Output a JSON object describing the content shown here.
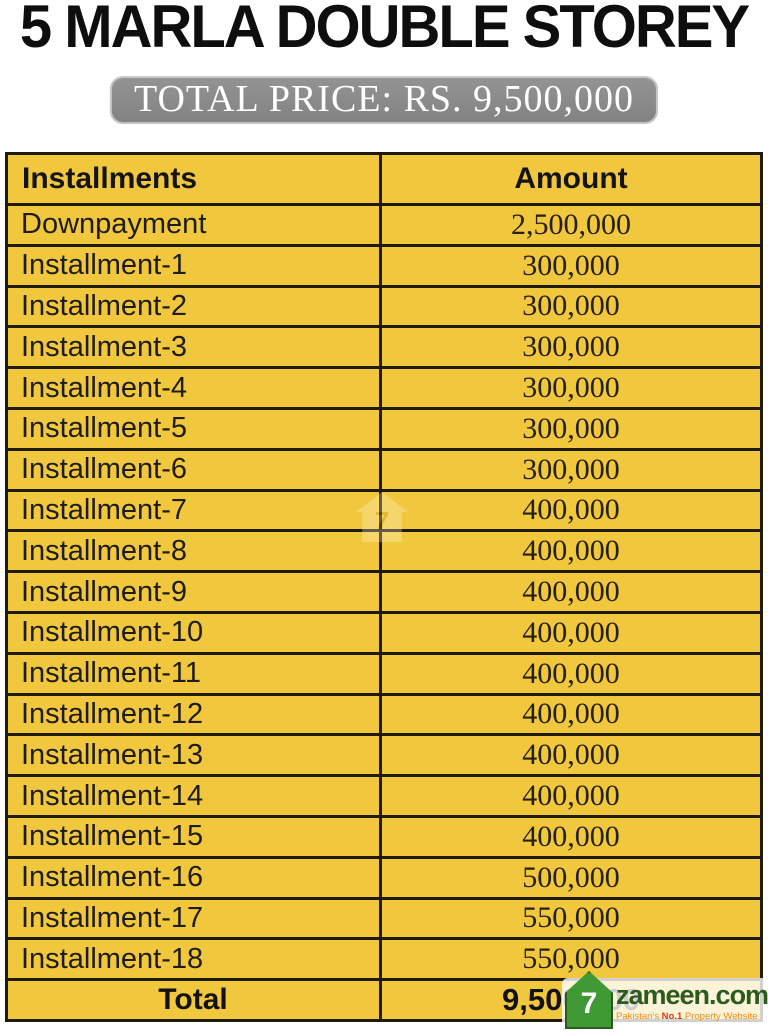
{
  "page": {
    "title": "5 MARLA DOUBLE STOREY",
    "price_banner": "TOTAL PRICE: RS. 9,500,000"
  },
  "table": {
    "headers": [
      "Installments",
      "Amount"
    ],
    "rows": [
      {
        "label": "Downpayment",
        "amount": "2,500,000"
      },
      {
        "label": "Installment-1",
        "amount": "300,000"
      },
      {
        "label": "Installment-2",
        "amount": "300,000"
      },
      {
        "label": "Installment-3",
        "amount": "300,000"
      },
      {
        "label": "Installment-4",
        "amount": "300,000"
      },
      {
        "label": "Installment-5",
        "amount": "300,000"
      },
      {
        "label": "Installment-6",
        "amount": "300,000"
      },
      {
        "label": "Installment-7",
        "amount": "400,000"
      },
      {
        "label": "Installment-8",
        "amount": "400,000"
      },
      {
        "label": "Installment-9",
        "amount": "400,000"
      },
      {
        "label": "Installment-10",
        "amount": "400,000"
      },
      {
        "label": "Installment-11",
        "amount": "400,000"
      },
      {
        "label": "Installment-12",
        "amount": "400,000"
      },
      {
        "label": "Installment-13",
        "amount": "400,000"
      },
      {
        "label": "Installment-14",
        "amount": "400,000"
      },
      {
        "label": "Installment-15",
        "amount": "400,000"
      },
      {
        "label": "Installment-16",
        "amount": "500,000"
      },
      {
        "label": "Installment-17",
        "amount": "550,000"
      },
      {
        "label": "Installment-18",
        "amount": "550,000"
      }
    ],
    "total": {
      "label": "Total",
      "amount": "9,500,000"
    }
  },
  "watermark": {
    "icon": "house-watermark",
    "glyph": "7"
  },
  "logo": {
    "brand": "zameen.com",
    "icon_glyph": "7",
    "tagline": {
      "p1": "Pakistan's",
      "p2": "No.1",
      "p3": "Property Website"
    }
  },
  "colors": {
    "table_yellow": "#f1c73d",
    "table_border": "#201a08",
    "banner_gray": "#8a8a8a",
    "logo_green": "#3f9a35",
    "logo_text_green": "#2d5a1d",
    "tagline_orange": "#f28b1d",
    "tagline_red": "#e8350e"
  }
}
